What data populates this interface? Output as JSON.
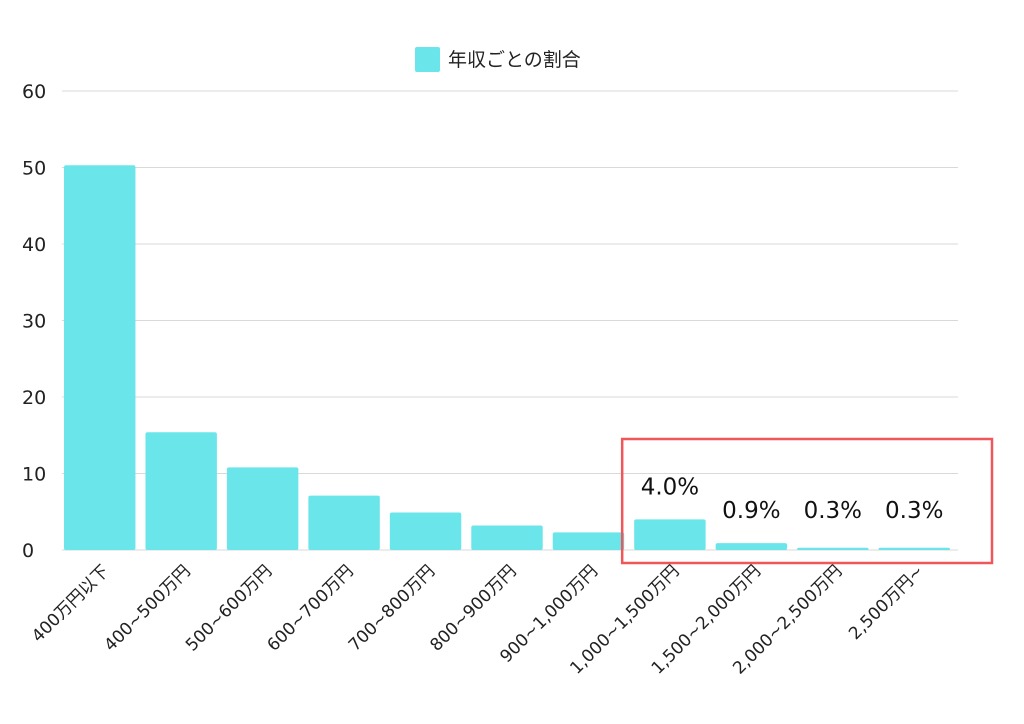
{
  "chart_data": {
    "type": "bar",
    "categories": [
      "400万円以下",
      "400~500万円",
      "500~600万円",
      "600~700万円",
      "700~800万円",
      "800~900万円",
      "900~1,000万円",
      "1,000~1,500万円",
      "1,500~2,000万円",
      "2,000~2,500万円",
      "2,500万円~"
    ],
    "series": [
      {
        "name": "年収ごとの割合",
        "values": [
          50.3,
          15.4,
          10.8,
          7.1,
          4.9,
          3.2,
          2.3,
          4.0,
          0.9,
          0.3,
          0.3
        ],
        "color": "#6ae6ea"
      }
    ],
    "yticks": [
      "0",
      "10",
      "20",
      "30",
      "40",
      "50",
      "60"
    ],
    "ylim": [
      0,
      60
    ],
    "grid": true,
    "legend": "top-center",
    "data_labels": [
      {
        "category_index": 7,
        "text": "4.0%"
      },
      {
        "category_index": 8,
        "text": "0.9%"
      },
      {
        "category_index": 9,
        "text": "0.3%"
      },
      {
        "category_index": 10,
        "text": "0.3%"
      }
    ],
    "highlight_box": {
      "from_index": 7,
      "to_index": 10,
      "color": "#f0575b"
    }
  }
}
